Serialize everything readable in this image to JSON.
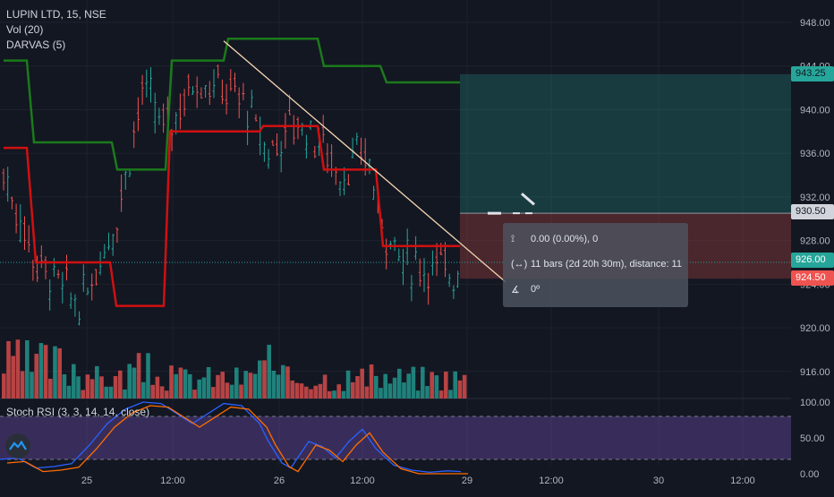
{
  "legend": {
    "symbol": "LUPIN LTD, 15, NSE",
    "volume": "Vol (20)",
    "darvas": "DARVAS (5)"
  },
  "stoch_label": "Stoch RSI (3, 3, 14, 14, close)",
  "tooltip": {
    "price_range": "0.00 (0.00%), 0",
    "bars_range": "11 bars (2d 20h 30m), distance: 11",
    "angle": "0º"
  },
  "price_tags": {
    "upper_target": "943.25",
    "entry": "930.50",
    "last_price": "926.00",
    "stop": "924.50"
  },
  "colors": {
    "background": "#131722",
    "up": "#26a69a",
    "down": "#ef5350",
    "darvas_top": "#1b7a1b",
    "darvas_bottom": "#d01010",
    "profit_zone": "rgba(38,166,154,0.25)",
    "loss_zone": "rgba(239,83,80,0.25)",
    "stoch_band": "#7e57c2"
  },
  "icons": {
    "tooltip_price": "vertical-range-icon",
    "tooltip_bars": "horizontal-range-icon",
    "tooltip_angle": "angle-icon",
    "brand": "tradingview-logo-icon"
  },
  "chart_data": [
    {
      "type": "candlestick",
      "title": "LUPIN LTD, 15, NSE",
      "y_ticks": [
        "948.00",
        "944.00",
        "940.00",
        "936.00",
        "932.00",
        "928.00",
        "924.00",
        "920.00",
        "916.00"
      ],
      "ylim": [
        912,
        949.5
      ],
      "x_ticks": [
        "25",
        "12:00",
        "26",
        "12:00",
        "29",
        "12:00",
        "30",
        "12:00"
      ],
      "series": [
        {
          "name": "DARVAS (5)",
          "values": []
        },
        {
          "name": "Vol (20)",
          "values": []
        }
      ]
    },
    {
      "type": "line",
      "title": "Stoch RSI (3, 3, 14, 14, close)",
      "y_ticks": [
        "100.00",
        "50.00",
        "0.00"
      ],
      "ylim": [
        0,
        100
      ],
      "band": [
        20,
        80
      ]
    }
  ]
}
